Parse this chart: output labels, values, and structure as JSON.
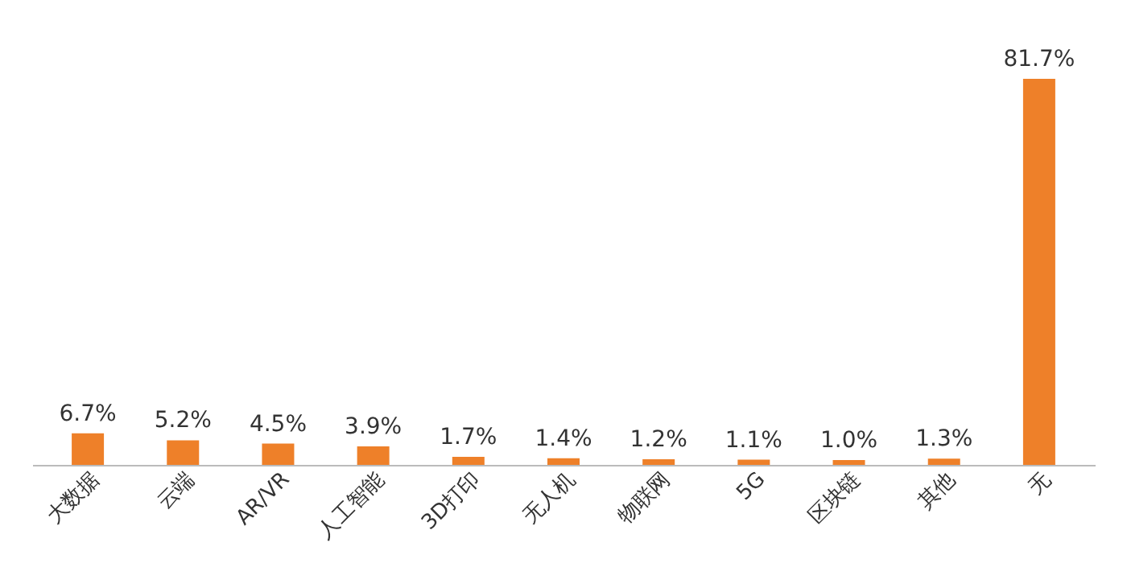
{
  "chart_data": {
    "type": "bar",
    "categories": [
      "大数据",
      "云端",
      "AR/VR",
      "人工智能",
      "3D打印",
      "无人机",
      "物联网",
      "5G",
      "区块链",
      "其他",
      "无"
    ],
    "values": [
      6.7,
      5.2,
      4.5,
      3.9,
      1.7,
      1.4,
      1.2,
      1.1,
      1.0,
      1.3,
      81.7
    ],
    "value_labels": [
      "6.7%",
      "5.2%",
      "4.5%",
      "3.9%",
      "1.7%",
      "1.4%",
      "1.2%",
      "1.1%",
      "1.0%",
      "1.3%",
      "81.7%"
    ],
    "color": "#ee8029",
    "tick_labels": "x"
  }
}
